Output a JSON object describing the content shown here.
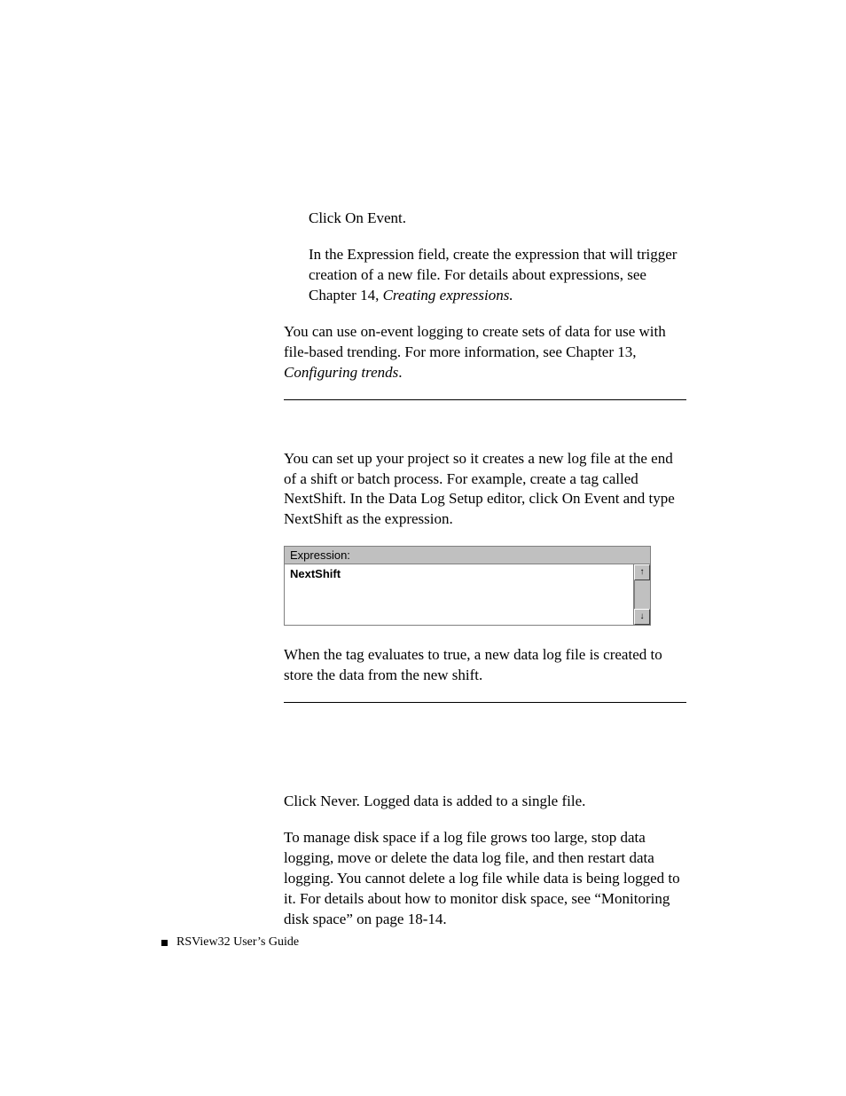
{
  "indent1": {
    "line": "Click On Event.",
    "p2a": "In the Expression field, create the expression that will trigger creation of a new file. For details about expressions, see Chapter 14, ",
    "p2b": "Creating expressions."
  },
  "para1a": "You can use on-event logging to create sets of data for use with file-based trending. For more information, see Chapter 13, ",
  "para1b": "Configuring trends",
  "para1c": ".",
  "para2": "You can set up your project so it creates a new log file at the end of a shift or batch process. For example, create a tag called NextShift. In the Data Log Setup editor, click On Event and type NextShift as the expression.",
  "expr": {
    "label": "Expression:",
    "value": "NextShift",
    "up": "↑",
    "down": "↓"
  },
  "para3": "When the tag evaluates to true, a new data log file is created to store the data from the new shift.",
  "never": {
    "p1": "Click Never. Logged data is added to a single file.",
    "p2": "To manage disk space if a log file grows too large, stop data logging, move or delete the data log file, and then restart data logging. You cannot delete a log file while data is being logged to it. For details about how to monitor disk space, see “Monitoring disk space” on page 18-14."
  },
  "footer": "RSView32  User’s Guide"
}
